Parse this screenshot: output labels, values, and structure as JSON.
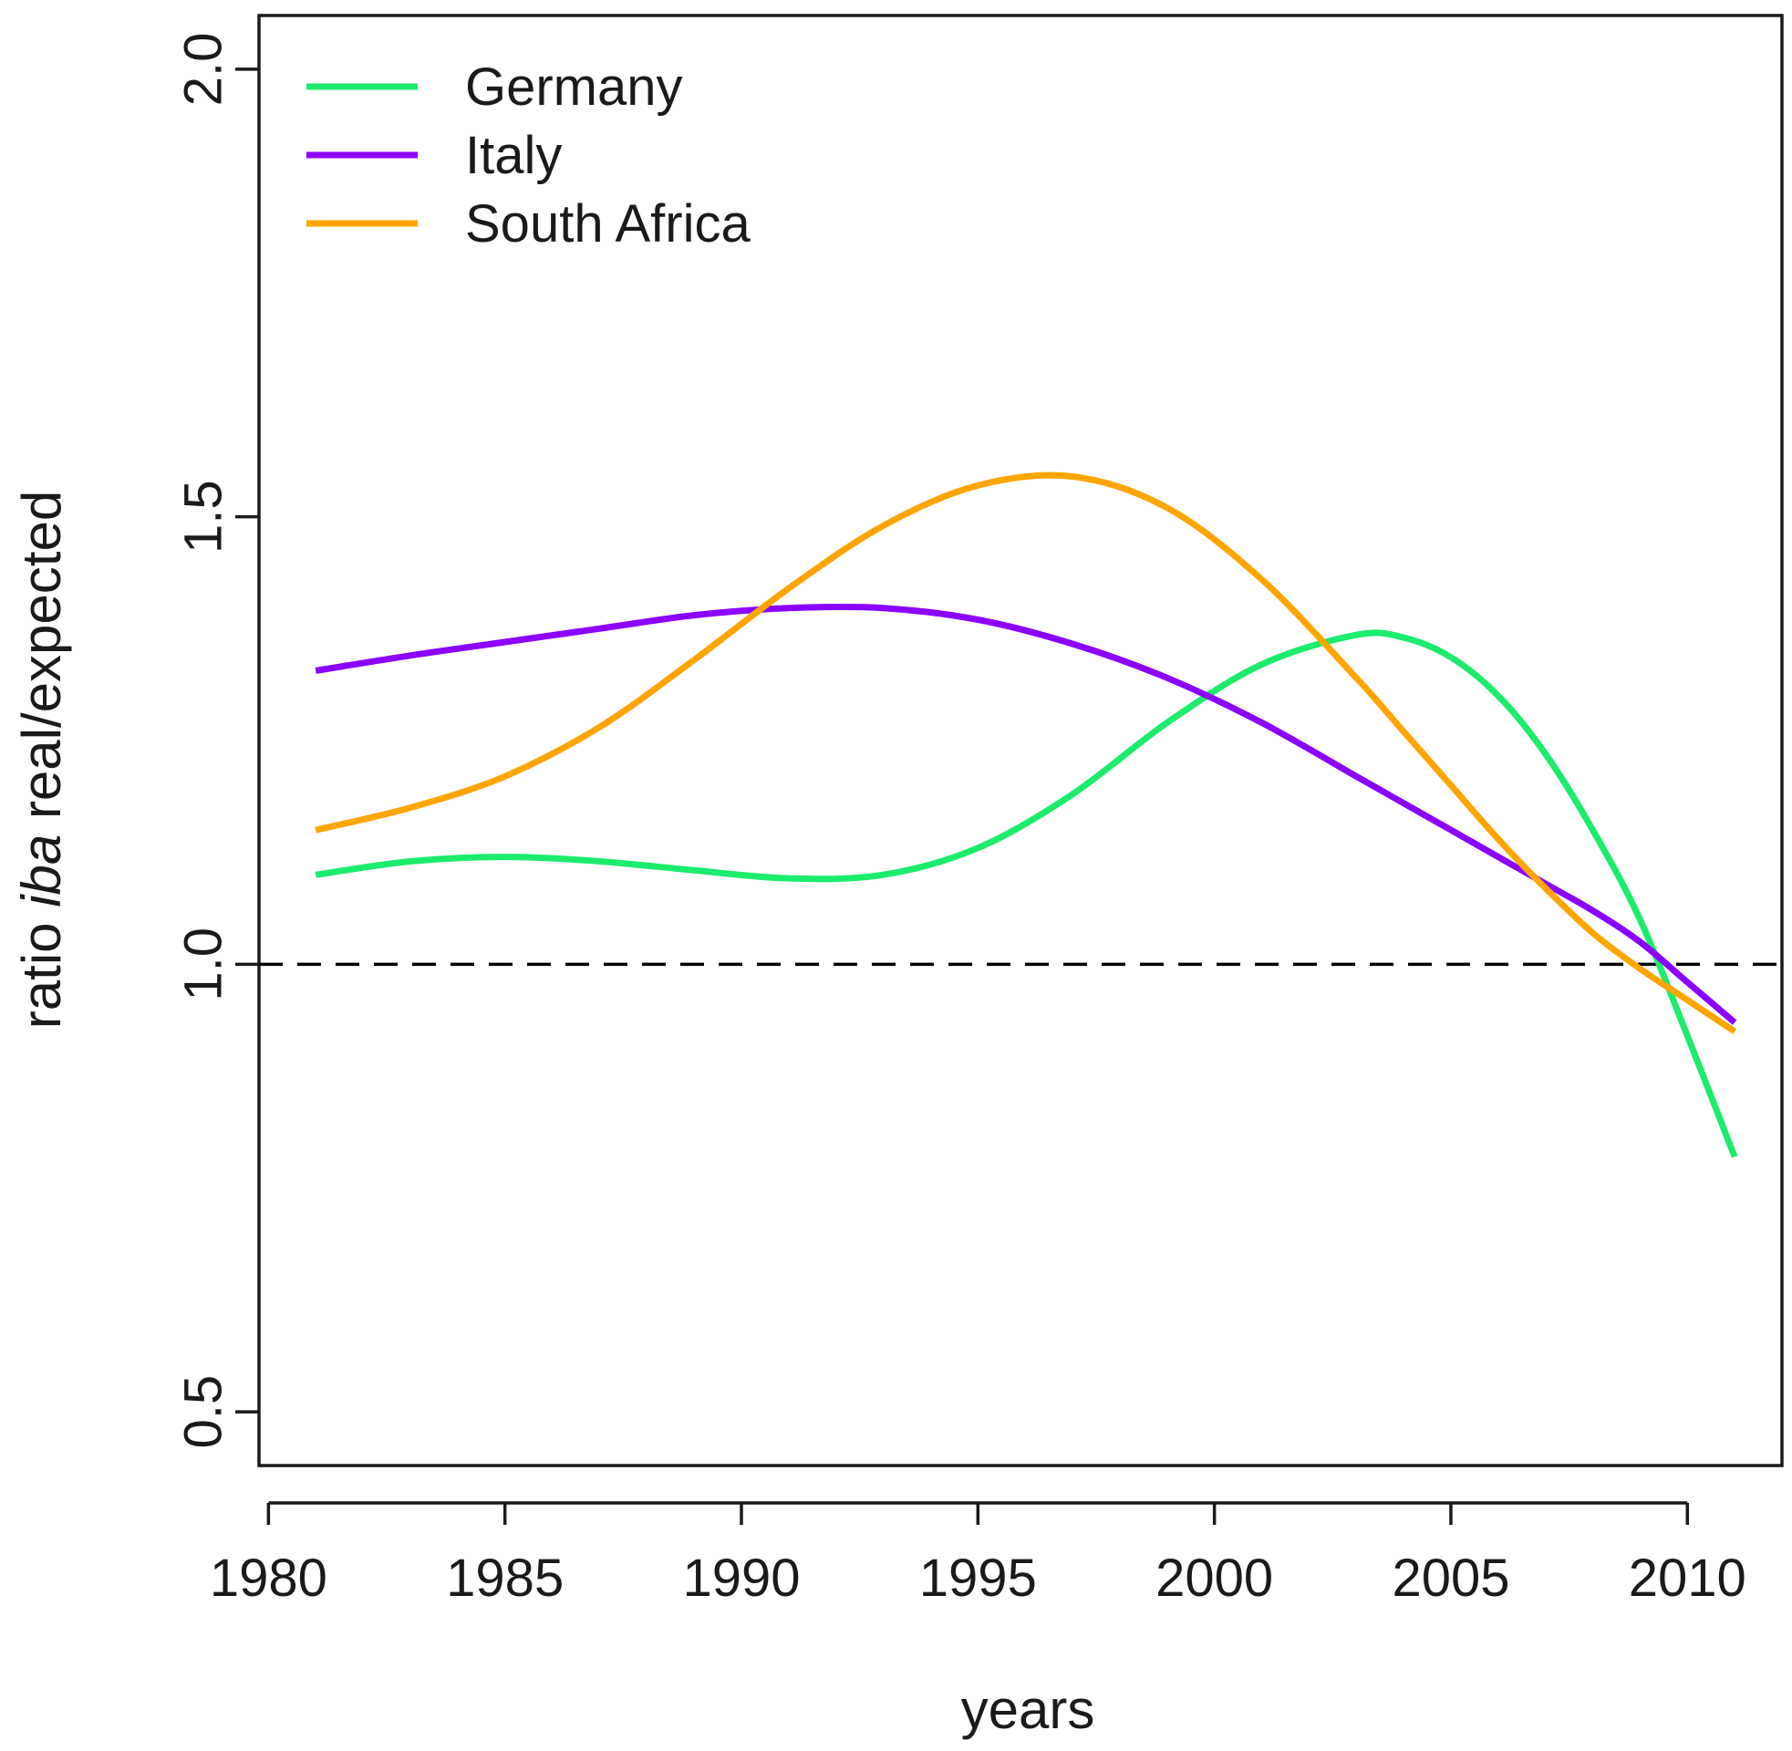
{
  "chart_data": {
    "type": "line",
    "title": "",
    "xlabel": "years",
    "ylabel_parts": [
      "ratio ",
      "iba",
      " real/expected"
    ],
    "xlim": [
      1979.8,
      2012
    ],
    "ylim": [
      0.44,
      2.06
    ],
    "xticks": [
      1980,
      1985,
      1990,
      1995,
      2000,
      2005,
      2010
    ],
    "xtick_labels": [
      "1980",
      "1985",
      "1990",
      "1995",
      "2000",
      "2005",
      "2010"
    ],
    "yticks": [
      0.5,
      1.0,
      1.5,
      2.0
    ],
    "ytick_labels": [
      "0.5",
      "1.0",
      "1.5",
      "2.0"
    ],
    "reference_line": {
      "y": 1.0,
      "style": "dashed",
      "color": "#000000"
    },
    "legend": {
      "position": "top-left"
    },
    "x": [
      1981,
      1983,
      1985,
      1987,
      1989,
      1991,
      1993,
      1995,
      1997,
      1999,
      2001,
      2003,
      2004,
      2005,
      2006,
      2007,
      2008,
      2009,
      2010,
      2011
    ],
    "series": [
      {
        "name": "Germany",
        "color": "#1cec6c",
        "values": [
          1.1,
          1.115,
          1.12,
          1.115,
          1.105,
          1.096,
          1.1,
          1.13,
          1.19,
          1.27,
          1.335,
          1.368,
          1.365,
          1.343,
          1.3,
          1.235,
          1.15,
          1.05,
          0.92,
          0.785
        ]
      },
      {
        "name": "Italy",
        "color": "#8b00ff",
        "values": [
          1.328,
          1.345,
          1.36,
          1.375,
          1.39,
          1.398,
          1.398,
          1.385,
          1.358,
          1.32,
          1.27,
          1.21,
          1.18,
          1.15,
          1.12,
          1.09,
          1.06,
          1.025,
          0.98,
          0.935
        ]
      },
      {
        "name": "South Africa",
        "color": "#ffa500",
        "values": [
          1.15,
          1.175,
          1.21,
          1.265,
          1.34,
          1.42,
          1.49,
          1.535,
          1.545,
          1.51,
          1.43,
          1.32,
          1.26,
          1.2,
          1.14,
          1.085,
          1.035,
          0.995,
          0.96,
          0.925
        ]
      }
    ]
  }
}
